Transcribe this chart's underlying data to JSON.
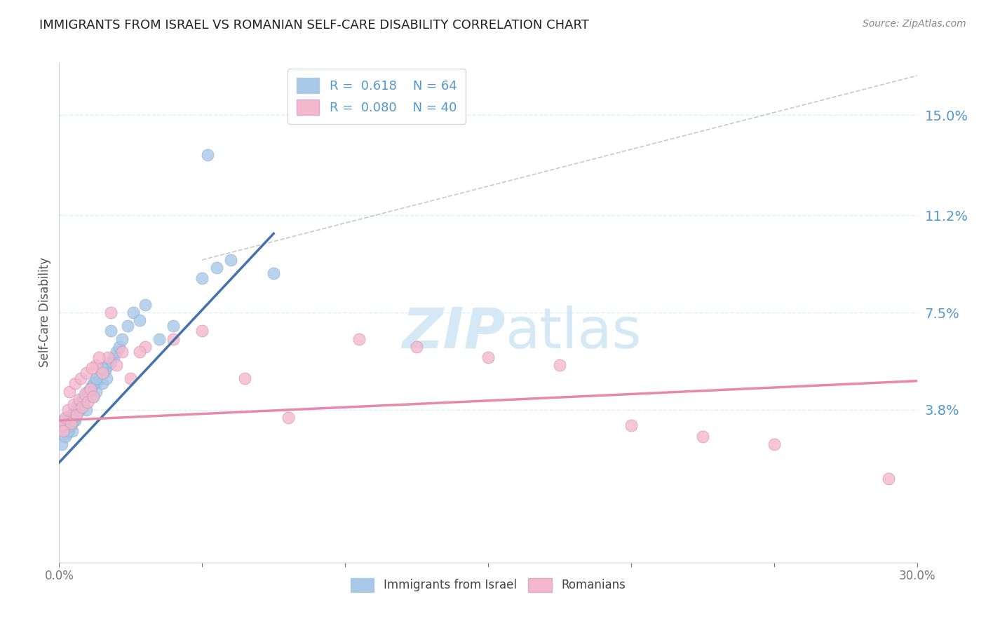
{
  "title": "IMMIGRANTS FROM ISRAEL VS ROMANIAN SELF-CARE DISABILITY CORRELATION CHART",
  "source": "Source: ZipAtlas.com",
  "ylabel": "Self-Care Disability",
  "xlim": [
    0.0,
    30.0
  ],
  "ylim": [
    -2.0,
    17.0
  ],
  "yticks": [
    3.8,
    7.5,
    11.2,
    15.0
  ],
  "ytick_labels": [
    "3.8%",
    "7.5%",
    "11.2%",
    "15.0%"
  ],
  "blue_R": 0.618,
  "blue_N": 64,
  "pink_R": 0.08,
  "pink_N": 40,
  "blue_label": "Immigrants from Israel",
  "pink_label": "Romanians",
  "blue_color": "#a8c8e8",
  "pink_color": "#f4b8cc",
  "blue_line_color": "#4472aa",
  "pink_line_color": "#e888aa",
  "title_color": "#222222",
  "tick_label_color": "#5599cc",
  "grid_color": "#ddeeff",
  "watermark_color": "#d5e8f5",
  "blue_x": [
    0.1,
    0.15,
    0.2,
    0.25,
    0.3,
    0.35,
    0.4,
    0.45,
    0.5,
    0.55,
    0.6,
    0.65,
    0.7,
    0.75,
    0.8,
    0.85,
    0.9,
    0.95,
    1.0,
    1.05,
    1.1,
    1.15,
    1.2,
    1.25,
    1.3,
    1.35,
    1.4,
    1.45,
    1.5,
    1.55,
    1.6,
    1.65,
    1.7,
    1.8,
    1.9,
    2.0,
    2.1,
    2.2,
    2.4,
    2.6,
    2.8,
    3.0,
    3.5,
    4.0,
    5.0,
    5.5,
    6.0,
    7.5,
    0.1,
    0.2,
    0.3,
    0.4,
    0.5,
    0.6,
    0.7,
    0.8,
    0.9,
    1.0,
    1.1,
    1.2,
    1.3,
    1.5,
    1.8,
    5.2
  ],
  "blue_y": [
    3.2,
    3.4,
    3.1,
    2.9,
    3.5,
    3.3,
    3.6,
    3.0,
    3.7,
    3.4,
    3.8,
    4.0,
    3.9,
    4.1,
    4.2,
    4.0,
    4.3,
    3.8,
    4.5,
    4.4,
    4.6,
    4.7,
    4.3,
    4.8,
    4.5,
    4.9,
    5.0,
    5.1,
    4.8,
    5.2,
    5.3,
    5.0,
    5.5,
    5.6,
    5.8,
    6.0,
    6.2,
    6.5,
    7.0,
    7.5,
    7.2,
    7.8,
    6.5,
    7.0,
    8.8,
    9.2,
    9.5,
    9.0,
    2.5,
    2.8,
    3.0,
    3.2,
    3.4,
    3.6,
    3.8,
    4.0,
    4.2,
    4.4,
    4.6,
    4.8,
    5.0,
    5.4,
    6.8,
    13.5
  ],
  "pink_x": [
    0.1,
    0.2,
    0.3,
    0.4,
    0.5,
    0.6,
    0.7,
    0.8,
    0.9,
    1.0,
    1.1,
    1.2,
    1.3,
    1.5,
    1.7,
    2.0,
    2.2,
    2.5,
    3.0,
    4.0,
    5.0,
    6.5,
    8.0,
    10.5,
    12.5,
    15.0,
    17.5,
    20.0,
    22.5,
    25.0,
    0.15,
    0.35,
    0.55,
    0.75,
    0.95,
    1.15,
    1.4,
    1.8,
    2.8,
    29.0
  ],
  "pink_y": [
    3.2,
    3.5,
    3.8,
    3.3,
    4.0,
    3.6,
    4.2,
    3.9,
    4.4,
    4.1,
    4.6,
    4.3,
    5.5,
    5.2,
    5.8,
    5.5,
    6.0,
    5.0,
    6.2,
    6.5,
    6.8,
    5.0,
    3.5,
    6.5,
    6.2,
    5.8,
    5.5,
    3.2,
    2.8,
    2.5,
    3.0,
    4.5,
    4.8,
    5.0,
    5.2,
    5.4,
    5.8,
    7.5,
    6.0,
    1.2
  ],
  "blue_trend_x": [
    0.0,
    7.5
  ],
  "blue_trend_y": [
    1.8,
    10.5
  ],
  "pink_trend_x": [
    0.0,
    30.0
  ],
  "pink_trend_y": [
    3.4,
    4.9
  ],
  "ref_line_x": [
    5.0,
    30.0
  ],
  "ref_line_y": [
    9.5,
    16.5
  ]
}
